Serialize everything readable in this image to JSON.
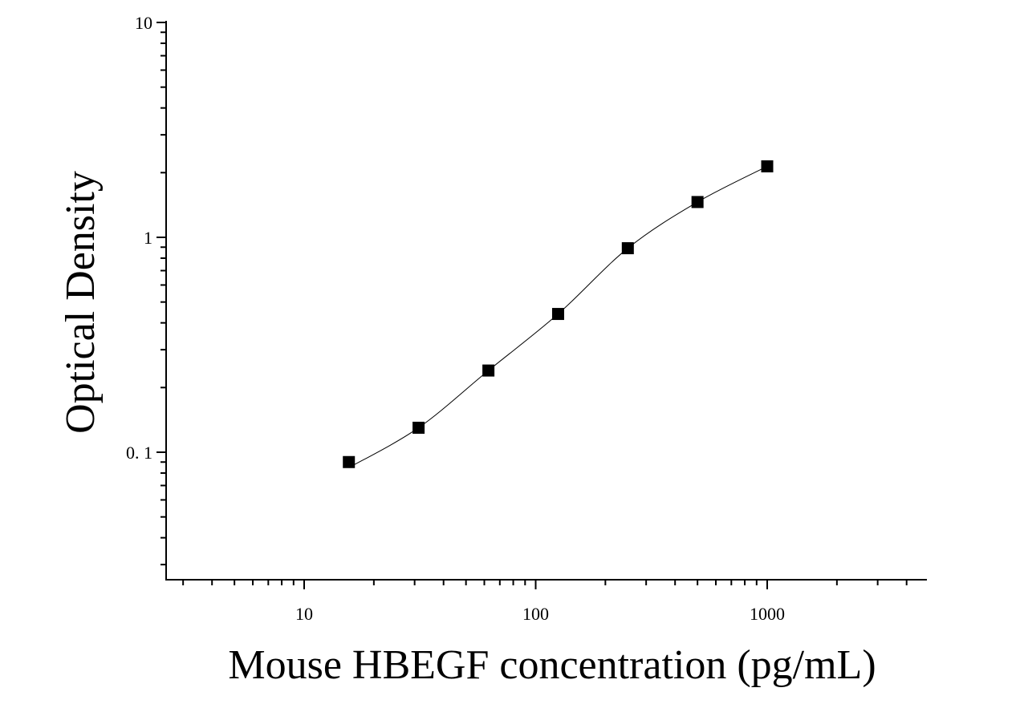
{
  "chart_data": {
    "type": "scatter",
    "title": "",
    "xlabel": "Mouse HBEGF concentration (pg/mL)",
    "ylabel": "Optical Density",
    "x_scale": "log",
    "y_scale": "log",
    "xlim": [
      2.5,
      5200
    ],
    "ylim": [
      0.025,
      10
    ],
    "x_ticks": [
      {
        "value": 10,
        "label": "10"
      },
      {
        "value": 100,
        "label": "100"
      },
      {
        "value": 1000,
        "label": "1000"
      }
    ],
    "y_ticks": [
      {
        "value": 0.1,
        "label": "0. 1"
      },
      {
        "value": 1,
        "label": "1"
      },
      {
        "value": 10,
        "label": "10"
      }
    ],
    "grid": false,
    "legend": "none",
    "series": [
      {
        "x": [
          15.6,
          31.2,
          62.5,
          125,
          250,
          500,
          1000
        ],
        "y": [
          0.09,
          0.13,
          0.24,
          0.44,
          0.89,
          1.46,
          2.14
        ],
        "marker": "square",
        "color": "#000000",
        "fit_curve": true
      }
    ]
  }
}
